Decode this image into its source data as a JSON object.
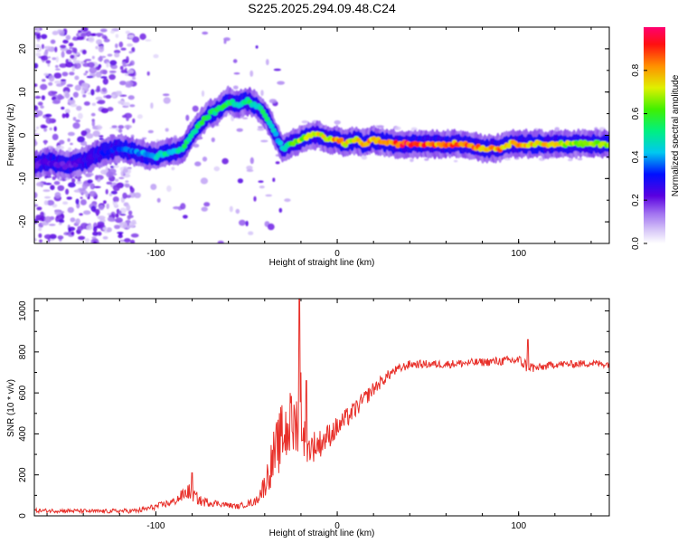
{
  "title": "S225.2025.294.09.48.C24",
  "chart_data": [
    {
      "type": "heatmap",
      "xlabel": "Height of straight line (km)",
      "ylabel": "Frequency (Hz)",
      "xlim": [
        -167,
        150
      ],
      "ylim": [
        -25,
        25
      ],
      "xticks": [
        -100,
        0,
        100
      ],
      "yticks": [
        -20,
        -10,
        0,
        10,
        20
      ],
      "colorbar": {
        "label": "Normalized spectral amplitude",
        "range": [
          0,
          1
        ],
        "ticks": [
          0.0,
          0.2,
          0.4,
          0.6,
          0.8
        ]
      },
      "ridge": {
        "x": [
          -167,
          -160,
          -150,
          -140,
          -130,
          -120,
          -110,
          -100,
          -95,
          -90,
          -85,
          -80,
          -75,
          -70,
          -65,
          -60,
          -55,
          -50,
          -45,
          -40,
          -35,
          -30,
          -25,
          -20,
          -15,
          -10,
          -5,
          0,
          5,
          10,
          15,
          20,
          30,
          40,
          50,
          60,
          70,
          80,
          85,
          90,
          95,
          100,
          110,
          120,
          130,
          140,
          150
        ],
        "y": [
          -7,
          -6,
          -7,
          -6,
          -4,
          -3,
          -4,
          -5,
          -4,
          -4,
          -3,
          0,
          3,
          5,
          6,
          8,
          7,
          8,
          7,
          5,
          1,
          -3,
          -2,
          -1,
          0,
          0,
          -1,
          -1,
          -2,
          -1,
          -2,
          -1,
          -2,
          -2,
          -2,
          -2,
          -2,
          -3,
          -3,
          -3,
          -2,
          -2,
          -2,
          -2,
          -2,
          -2,
          -2
        ],
        "peak": [
          0.2,
          0.25,
          0.2,
          0.25,
          0.3,
          0.35,
          0.4,
          0.45,
          0.5,
          0.45,
          0.55,
          0.5,
          0.6,
          0.55,
          0.55,
          0.6,
          0.5,
          0.55,
          0.5,
          0.55,
          0.45,
          0.5,
          0.6,
          0.7,
          0.75,
          0.8,
          0.75,
          0.85,
          0.8,
          0.75,
          0.85,
          0.8,
          0.9,
          0.95,
          0.9,
          0.85,
          0.9,
          0.85,
          0.8,
          0.85,
          0.8,
          0.85,
          0.8,
          0.75,
          0.7,
          0.7,
          0.7
        ]
      }
    },
    {
      "type": "line",
      "xlabel": "Height of straight line (km)",
      "ylabel": "SNR (10 * v/v)",
      "xlim": [
        -167,
        150
      ],
      "ylim": [
        0,
        1060
      ],
      "xticks": [
        -100,
        0,
        100
      ],
      "yticks": [
        0,
        200,
        400,
        600,
        800,
        1000
      ],
      "series": [
        {
          "name": "SNR",
          "color": "#e8302a",
          "x": [
            -167,
            -150,
            -130,
            -110,
            -100,
            -90,
            -82,
            -75,
            -65,
            -55,
            -45,
            -40,
            -35,
            -30,
            -25,
            -20,
            -17,
            -10,
            0,
            10,
            20,
            30,
            40,
            60,
            80,
            100,
            105,
            110,
            120,
            130,
            140,
            150
          ],
          "y": [
            25,
            25,
            22,
            25,
            45,
            70,
            120,
            70,
            60,
            45,
            70,
            150,
            290,
            400,
            430,
            480,
            330,
            350,
            430,
            520,
            620,
            700,
            740,
            740,
            750,
            760,
            730,
            720,
            740,
            740,
            745,
            740
          ],
          "noise": [
            10,
            10,
            10,
            12,
            15,
            20,
            40,
            25,
            15,
            12,
            20,
            60,
            130,
            170,
            170,
            140,
            90,
            70,
            55,
            45,
            35,
            25,
            20,
            20,
            20,
            25,
            35,
            20,
            18,
            18,
            18,
            18
          ]
        }
      ],
      "spikes": [
        {
          "x": -33,
          "y": 270
        },
        {
          "x": -27,
          "y": 450
        },
        {
          "x": -26,
          "y": 600
        },
        {
          "x": -21,
          "y": 1060
        },
        {
          "x": -20,
          "y": 700
        },
        {
          "x": -17,
          "y": 660
        },
        {
          "x": -16,
          "y": 350
        },
        {
          "x": -80,
          "y": 210
        },
        {
          "x": 105,
          "y": 860
        }
      ]
    }
  ]
}
